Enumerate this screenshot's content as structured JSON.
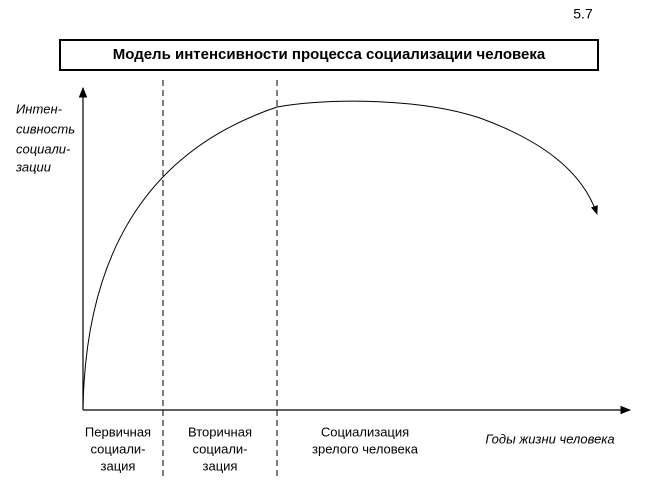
{
  "figure_number": "5.7",
  "title": "Модель интенсивности процесса социализации человека",
  "y_axis_label": [
    "Интен-",
    "сивность",
    "социали-",
    "зации"
  ],
  "x_axis_label": "Годы жизни человека",
  "stages": [
    {
      "label": [
        "Первичная",
        "социали-",
        "зация"
      ]
    },
    {
      "label": [
        "Вторичная",
        "социали-",
        "зация"
      ]
    },
    {
      "label": [
        "Социализация",
        "зрелого человека"
      ]
    }
  ]
}
